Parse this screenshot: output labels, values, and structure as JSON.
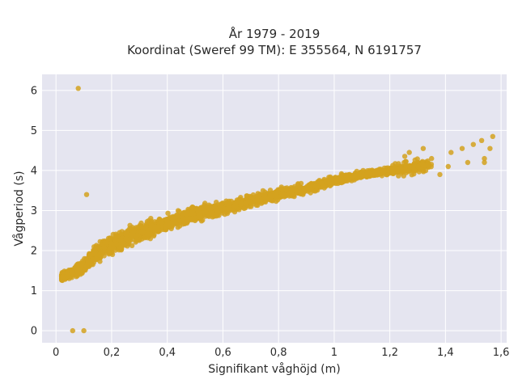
{
  "chart_data": {
    "type": "scatter",
    "title_line1": "År 1979 - 2019",
    "title_line2": "Koordinat (Sweref 99 TM): E 355564, N 6191757",
    "xlabel": "Signifikant våghöjd (m)",
    "ylabel": "Vågperiod (s)",
    "xlim": [
      -0.05,
      1.62
    ],
    "ylim": [
      -0.3,
      6.4
    ],
    "x_ticks": [
      0,
      0.2,
      0.4,
      0.6,
      0.8,
      1.0,
      1.2,
      1.4,
      1.6
    ],
    "x_tick_labels": [
      "0",
      "0,2",
      "0,4",
      "0,6",
      "0,8",
      "1",
      "1,2",
      "1,4",
      "1,6"
    ],
    "y_ticks": [
      0,
      1,
      2,
      3,
      4,
      5,
      6
    ],
    "y_tick_labels": [
      "0",
      "1",
      "2",
      "3",
      "4",
      "5",
      "6"
    ],
    "grid": true,
    "marker_color": "#D4A21E",
    "background_color": "#E5E5F0",
    "main_trend": {
      "x": [
        0.02,
        0.06,
        0.1,
        0.15,
        0.2,
        0.3,
        0.4,
        0.5,
        0.6,
        0.7,
        0.8,
        0.9,
        1.0,
        1.1,
        1.2,
        1.3,
        1.4,
        1.5,
        1.57
      ],
      "y": [
        1.35,
        1.45,
        1.6,
        1.95,
        2.15,
        2.45,
        2.7,
        2.9,
        3.05,
        3.25,
        3.4,
        3.55,
        3.75,
        3.9,
        4.0,
        4.1,
        4.25,
        4.4,
        4.6
      ],
      "spread": [
        0.15,
        0.2,
        0.3,
        0.35,
        0.35,
        0.35,
        0.33,
        0.3,
        0.28,
        0.25,
        0.22,
        0.2,
        0.18,
        0.15,
        0.15,
        0.15,
        0.15,
        0.15,
        0.1
      ]
    },
    "outliers": [
      {
        "x": 0.08,
        "y": 6.05
      },
      {
        "x": 0.11,
        "y": 3.4
      },
      {
        "x": 0.06,
        "y": 0.0
      },
      {
        "x": 0.1,
        "y": 0.0
      },
      {
        "x": 1.57,
        "y": 4.85
      },
      {
        "x": 1.53,
        "y": 4.75
      },
      {
        "x": 1.56,
        "y": 4.55
      },
      {
        "x": 1.46,
        "y": 4.55
      },
      {
        "x": 1.48,
        "y": 4.2
      },
      {
        "x": 1.54,
        "y": 4.2
      },
      {
        "x": 1.54,
        "y": 4.3
      },
      {
        "x": 1.5,
        "y": 4.65
      },
      {
        "x": 1.42,
        "y": 4.45
      },
      {
        "x": 1.38,
        "y": 3.9
      },
      {
        "x": 1.41,
        "y": 4.1
      },
      {
        "x": 1.35,
        "y": 4.3
      },
      {
        "x": 1.32,
        "y": 4.55
      },
      {
        "x": 1.27,
        "y": 4.45
      }
    ]
  }
}
